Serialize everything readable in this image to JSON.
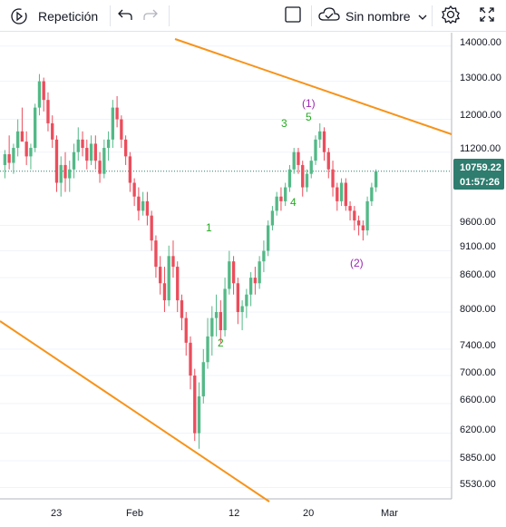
{
  "toolbar": {
    "replay_label": "Repetición",
    "layout_name": "Sin nombre"
  },
  "icons": {
    "replay": "replay-icon",
    "undo": "undo-icon",
    "redo": "redo-icon",
    "layout": "layout-square-icon",
    "cloud": "cloud-icon",
    "chevron": "chevron-down-icon",
    "settings": "gear-icon",
    "fullscreen": "fullscreen-icon"
  },
  "price_axis": {
    "ticks": [
      "14000.00",
      "13000.00",
      "12000.00",
      "11200.00",
      "9600.00",
      "9100.00",
      "8600.00",
      "8000.00",
      "7400.00",
      "7000.00",
      "6600.00",
      "6200.00",
      "5850.00",
      "5530.00"
    ],
    "last_price": "10759.22",
    "countdown": "01:57:26"
  },
  "date_axis": {
    "ticks": [
      "23",
      "Feb",
      "12",
      "20",
      "Mar"
    ]
  },
  "wave_labels": {
    "w1": "1",
    "w2": "2",
    "w3": "3",
    "w4": "4",
    "w5": "5",
    "wa": "(1)",
    "wb": "(2)"
  },
  "colors": {
    "up": "#53b987",
    "down": "#eb4d5c",
    "trendline": "#f7931a",
    "wave_impulse": "#22ab1f",
    "wave_corrective": "#9c27b0",
    "price_label_bg": "#2e7d6f"
  },
  "chart_data": {
    "type": "candlestick",
    "log_scale": true,
    "ylim": [
      5400,
      14400
    ],
    "candles": [
      [
        10900,
        11250,
        10600,
        11150
      ],
      [
        11150,
        11600,
        10800,
        10950
      ],
      [
        10950,
        11400,
        10700,
        11300
      ],
      [
        11300,
        12000,
        11100,
        11700
      ],
      [
        11700,
        12300,
        11500,
        11450
      ],
      [
        11450,
        11700,
        10900,
        11100
      ],
      [
        11100,
        11400,
        10800,
        11300
      ],
      [
        11300,
        12400,
        11200,
        12300
      ],
      [
        12300,
        13200,
        12100,
        13000
      ],
      [
        13000,
        13100,
        12200,
        12500
      ],
      [
        12500,
        12700,
        11700,
        11900
      ],
      [
        11900,
        12100,
        11300,
        11500
      ],
      [
        11500,
        11600,
        10300,
        10500
      ],
      [
        10500,
        11100,
        10200,
        10900
      ],
      [
        10900,
        11200,
        10300,
        10600
      ],
      [
        10600,
        11000,
        10300,
        10800
      ],
      [
        10800,
        11400,
        10600,
        11200
      ],
      [
        11200,
        11800,
        11000,
        11500
      ],
      [
        11500,
        11700,
        11100,
        11300
      ],
      [
        11300,
        11500,
        10800,
        11000
      ],
      [
        11000,
        11600,
        10900,
        11400
      ],
      [
        11400,
        11600,
        10800,
        11000
      ],
      [
        11000,
        11200,
        10500,
        10700
      ],
      [
        10700,
        11500,
        10600,
        11300
      ],
      [
        11300,
        11700,
        11000,
        11500
      ],
      [
        11500,
        12500,
        11300,
        12300
      ],
      [
        12300,
        12600,
        11800,
        12000
      ],
      [
        12000,
        12100,
        11300,
        11500
      ],
      [
        11500,
        11600,
        10900,
        11100
      ],
      [
        11100,
        11200,
        10300,
        10500
      ],
      [
        10500,
        10600,
        10000,
        10200
      ],
      [
        10200,
        10400,
        9700,
        9900
      ],
      [
        9900,
        10300,
        9800,
        10100
      ],
      [
        10100,
        10300,
        9600,
        9800
      ],
      [
        9800,
        9900,
        9100,
        9300
      ],
      [
        9300,
        9400,
        8600,
        8800
      ],
      [
        8800,
        9000,
        8300,
        8500
      ],
      [
        8500,
        8800,
        8000,
        8200
      ],
      [
        8200,
        9200,
        8100,
        9000
      ],
      [
        9000,
        9300,
        8600,
        8800
      ],
      [
        8800,
        8900,
        8000,
        8200
      ],
      [
        8200,
        8300,
        7700,
        7900
      ],
      [
        7900,
        8000,
        7300,
        7500
      ],
      [
        7500,
        7600,
        6800,
        7000
      ],
      [
        7000,
        7100,
        6100,
        6200
      ],
      [
        6200,
        6900,
        6000,
        6700
      ],
      [
        6700,
        7400,
        6600,
        7200
      ],
      [
        7200,
        7900,
        7100,
        7600
      ],
      [
        7600,
        8100,
        7300,
        7900
      ],
      [
        7900,
        8300,
        7600,
        8000
      ],
      [
        8000,
        8200,
        7500,
        7700
      ],
      [
        7700,
        8600,
        7600,
        8400
      ],
      [
        8400,
        9100,
        8300,
        8900
      ],
      [
        8900,
        9000,
        8300,
        8500
      ],
      [
        8500,
        8600,
        7800,
        8000
      ],
      [
        8000,
        8200,
        7700,
        8100
      ],
      [
        8100,
        8400,
        7900,
        8300
      ],
      [
        8300,
        8700,
        8100,
        8600
      ],
      [
        8600,
        8800,
        8300,
        8500
      ],
      [
        8500,
        9000,
        8400,
        8900
      ],
      [
        8900,
        9300,
        8700,
        9100
      ],
      [
        9100,
        9700,
        9000,
        9600
      ],
      [
        9600,
        10000,
        9500,
        9900
      ],
      [
        9900,
        10300,
        9800,
        10200
      ],
      [
        10200,
        10400,
        9900,
        10100
      ],
      [
        10100,
        10500,
        10000,
        10400
      ],
      [
        10400,
        10900,
        10300,
        10800
      ],
      [
        10800,
        11300,
        10700,
        11200
      ],
      [
        11200,
        11300,
        10700,
        10900
      ],
      [
        10900,
        11000,
        10200,
        10400
      ],
      [
        10400,
        10800,
        10300,
        10700
      ],
      [
        10700,
        11100,
        10600,
        11000
      ],
      [
        11000,
        11600,
        10900,
        11500
      ],
      [
        11500,
        11900,
        11300,
        11700
      ],
      [
        11700,
        11800,
        11000,
        11200
      ],
      [
        11200,
        11300,
        10600,
        10800
      ],
      [
        10800,
        11000,
        10200,
        10400
      ],
      [
        10400,
        10500,
        9900,
        10100
      ],
      [
        10100,
        10600,
        10000,
        10500
      ],
      [
        10500,
        10600,
        9900,
        10000
      ],
      [
        10000,
        10100,
        9700,
        9900
      ],
      [
        9900,
        10000,
        9500,
        9700
      ],
      [
        9700,
        9800,
        9400,
        9600
      ],
      [
        9600,
        9700,
        9300,
        9500
      ],
      [
        9500,
        10200,
        9400,
        10100
      ],
      [
        10100,
        10500,
        10000,
        10400
      ],
      [
        10400,
        10800,
        10300,
        10759
      ]
    ]
  }
}
